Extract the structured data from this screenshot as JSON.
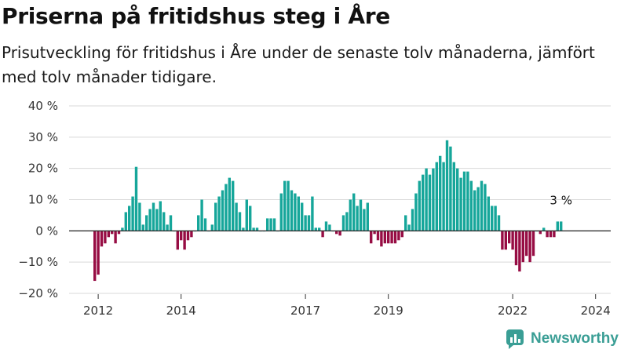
{
  "title": "Priserna på fritidshus steg i Åre",
  "subtitle": "Prisutveckling för fritidshus i Åre under de senaste tolv månaderna, jämfört med tolv månader tidigare.",
  "brand": {
    "name": "Newsworthy"
  },
  "colors": {
    "positive": "#16a69a",
    "negative": "#970d44",
    "logo": "#3a9e95"
  },
  "chart_data": {
    "type": "bar",
    "title": "Priserna på fritidshus steg i Åre",
    "subtitle": "Prisutveckling för fritidshus i Åre under de senaste tolv månaderna, jämfört med tolv månader tidigare.",
    "xlabel": "",
    "ylabel": "",
    "unit": "%",
    "ylim": [
      -20,
      40
    ],
    "yticks": [
      -20,
      -10,
      0,
      10,
      20,
      30,
      40
    ],
    "ytick_labels": [
      "−20 %",
      "−10 %",
      "0 %",
      "10 %",
      "20 %",
      "30 %",
      "40 %"
    ],
    "xtick_labels": [
      {
        "label": "2012",
        "year": 2012
      },
      {
        "label": "2014",
        "year": 2014
      },
      {
        "label": "2017",
        "year": 2017
      },
      {
        "label": "2019",
        "year": 2019
      },
      {
        "label": "2022",
        "year": 2022
      },
      {
        "label": "2024",
        "year": 2024
      }
    ],
    "grid": true,
    "start": "2011-12",
    "frequency": "monthly",
    "values": [
      -16,
      -14,
      -5,
      -4,
      -2,
      -1,
      -4,
      -1,
      1,
      6,
      8,
      11,
      20.5,
      9,
      2,
      5,
      7,
      9,
      7,
      9.5,
      6,
      2,
      5,
      0,
      -6,
      -3,
      -6,
      -3,
      -2,
      0,
      5,
      10,
      4,
      0,
      2,
      9,
      11,
      13,
      15,
      17,
      16,
      9,
      6,
      1,
      10,
      8,
      1,
      1,
      0,
      0,
      4,
      4,
      4,
      0,
      12,
      16,
      16,
      13,
      12,
      11,
      9,
      5,
      5,
      11,
      1,
      1,
      -2,
      3,
      2,
      0,
      -1,
      -1.5,
      5,
      6,
      10,
      12,
      8,
      10,
      7,
      9,
      -4,
      -1,
      -3,
      -5,
      -4,
      -4,
      -4,
      -4,
      -3,
      -2,
      5,
      2,
      7,
      12,
      16,
      18,
      20,
      18,
      20,
      22,
      24,
      22,
      29,
      27,
      22,
      20,
      17,
      19,
      19,
      16,
      13,
      14,
      16,
      15,
      11,
      8,
      8,
      5,
      -6,
      -6,
      -4,
      -6,
      -11,
      -13,
      -10,
      -8,
      -10,
      -8,
      0,
      -1,
      1,
      -2,
      -2,
      -2,
      3,
      3
    ],
    "annotations": [
      {
        "text": "3 %",
        "value": 3
      }
    ]
  }
}
